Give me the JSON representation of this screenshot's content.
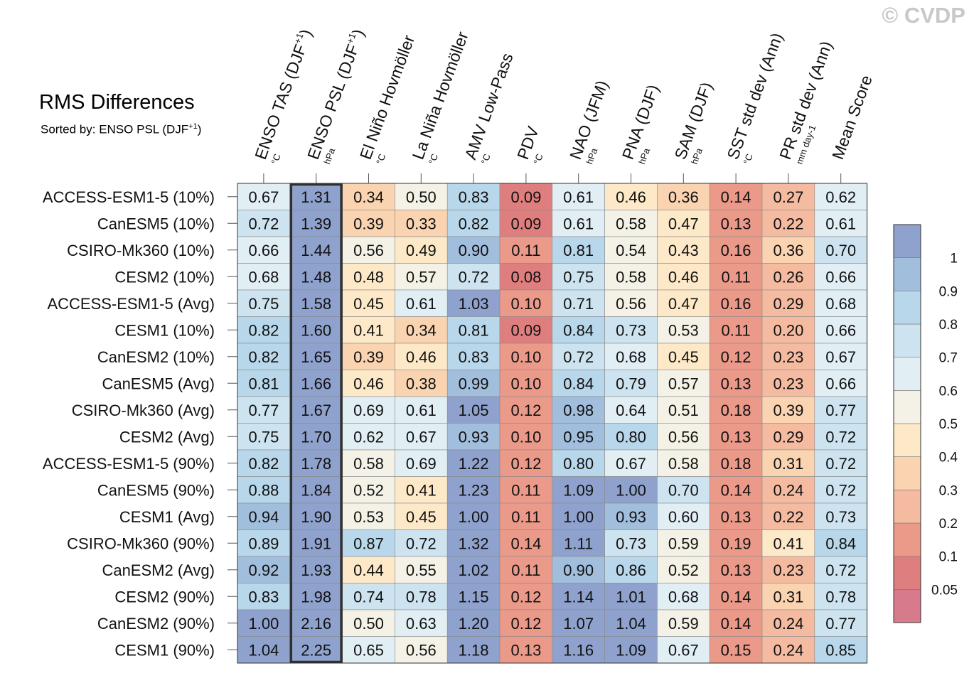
{
  "watermark": "© CVDP",
  "title": "RMS Differences",
  "subtitle_prefix": "Sorted by: ENSO PSL (DJF",
  "subtitle_sup": "+1",
  "subtitle_suffix": ")",
  "chart_data": {
    "type": "heatmap",
    "title": "RMS Differences",
    "sorted_by": "ENSO PSL (DJF+1)",
    "highlighted_column": "ENSO PSL (DJF+1)",
    "columns": [
      {
        "label": "ENSO TAS (DJF",
        "sup": "+1",
        "close": ")",
        "unit": "°C"
      },
      {
        "label": "ENSO PSL (DJF",
        "sup": "+1",
        "close": ")",
        "unit": "hPa"
      },
      {
        "label": "El Niño Hovmöller",
        "sup": "",
        "close": "",
        "unit": "°C"
      },
      {
        "label": "La Niña Hovmöller",
        "sup": "",
        "close": "",
        "unit": "°C"
      },
      {
        "label": "AMV Low-Pass",
        "sup": "",
        "close": "",
        "unit": "°C"
      },
      {
        "label": "PDV",
        "sup": "",
        "close": "",
        "unit": "°C"
      },
      {
        "label": "NAO (JFM)",
        "sup": "",
        "close": "",
        "unit": "hPa"
      },
      {
        "label": "PNA (DJF)",
        "sup": "",
        "close": "",
        "unit": "hPa"
      },
      {
        "label": "SAM (DJF)",
        "sup": "",
        "close": "",
        "unit": "hPa"
      },
      {
        "label": "SST std dev (Ann)",
        "sup": "",
        "close": "",
        "unit": "°C"
      },
      {
        "label": "PR std dev (Ann)",
        "sup": "",
        "close": "",
        "unit": "mm day-1"
      },
      {
        "label": "Mean Score",
        "sup": "",
        "close": "",
        "unit": ""
      }
    ],
    "rows": [
      "ACCESS-ESM1-5 (10%)",
      "CanESM5 (10%)",
      "CSIRO-Mk360 (10%)",
      "CESM2 (10%)",
      "ACCESS-ESM1-5 (Avg)",
      "CESM1 (10%)",
      "CanESM2 (10%)",
      "CanESM5 (Avg)",
      "CSIRO-Mk360 (Avg)",
      "CESM2 (Avg)",
      "ACCESS-ESM1-5 (90%)",
      "CanESM5 (90%)",
      "CESM1 (Avg)",
      "CSIRO-Mk360 (90%)",
      "CanESM2 (Avg)",
      "CESM2 (90%)",
      "CanESM2 (90%)",
      "CESM1 (90%)"
    ],
    "values": [
      [
        "0.67",
        "1.31",
        "0.34",
        "0.50",
        "0.83",
        "0.09",
        "0.61",
        "0.46",
        "0.36",
        "0.14",
        "0.27",
        "0.62"
      ],
      [
        "0.72",
        "1.39",
        "0.39",
        "0.33",
        "0.82",
        "0.09",
        "0.61",
        "0.58",
        "0.47",
        "0.13",
        "0.22",
        "0.61"
      ],
      [
        "0.66",
        "1.44",
        "0.56",
        "0.49",
        "0.90",
        "0.11",
        "0.81",
        "0.54",
        "0.43",
        "0.16",
        "0.36",
        "0.70"
      ],
      [
        "0.68",
        "1.48",
        "0.48",
        "0.57",
        "0.72",
        "0.08",
        "0.75",
        "0.58",
        "0.46",
        "0.11",
        "0.26",
        "0.66"
      ],
      [
        "0.75",
        "1.58",
        "0.45",
        "0.61",
        "1.03",
        "0.10",
        "0.71",
        "0.56",
        "0.47",
        "0.16",
        "0.29",
        "0.68"
      ],
      [
        "0.82",
        "1.60",
        "0.41",
        "0.34",
        "0.81",
        "0.09",
        "0.84",
        "0.73",
        "0.53",
        "0.11",
        "0.20",
        "0.66"
      ],
      [
        "0.82",
        "1.65",
        "0.39",
        "0.46",
        "0.83",
        "0.10",
        "0.72",
        "0.68",
        "0.45",
        "0.12",
        "0.23",
        "0.67"
      ],
      [
        "0.81",
        "1.66",
        "0.46",
        "0.38",
        "0.99",
        "0.10",
        "0.84",
        "0.79",
        "0.57",
        "0.13",
        "0.23",
        "0.66"
      ],
      [
        "0.77",
        "1.67",
        "0.69",
        "0.61",
        "1.05",
        "0.12",
        "0.98",
        "0.64",
        "0.51",
        "0.18",
        "0.39",
        "0.77"
      ],
      [
        "0.75",
        "1.70",
        "0.62",
        "0.67",
        "0.93",
        "0.10",
        "0.95",
        "0.80",
        "0.56",
        "0.13",
        "0.29",
        "0.72"
      ],
      [
        "0.82",
        "1.78",
        "0.58",
        "0.69",
        "1.22",
        "0.12",
        "0.80",
        "0.67",
        "0.58",
        "0.18",
        "0.31",
        "0.72"
      ],
      [
        "0.88",
        "1.84",
        "0.52",
        "0.41",
        "1.23",
        "0.11",
        "1.09",
        "1.00",
        "0.70",
        "0.14",
        "0.24",
        "0.72"
      ],
      [
        "0.94",
        "1.90",
        "0.53",
        "0.45",
        "1.00",
        "0.11",
        "1.00",
        "0.93",
        "0.60",
        "0.13",
        "0.22",
        "0.73"
      ],
      [
        "0.89",
        "1.91",
        "0.87",
        "0.72",
        "1.32",
        "0.14",
        "1.11",
        "0.73",
        "0.59",
        "0.19",
        "0.41",
        "0.84"
      ],
      [
        "0.92",
        "1.93",
        "0.44",
        "0.55",
        "1.02",
        "0.11",
        "0.90",
        "0.86",
        "0.52",
        "0.13",
        "0.23",
        "0.72"
      ],
      [
        "0.83",
        "1.98",
        "0.74",
        "0.78",
        "1.15",
        "0.12",
        "1.14",
        "1.01",
        "0.68",
        "0.14",
        "0.31",
        "0.78"
      ],
      [
        "1.00",
        "2.16",
        "0.50",
        "0.63",
        "1.20",
        "0.12",
        "1.07",
        "1.04",
        "0.59",
        "0.14",
        "0.24",
        "0.77"
      ],
      [
        "1.04",
        "2.25",
        "0.65",
        "0.56",
        "1.18",
        "0.13",
        "1.16",
        "1.09",
        "0.67",
        "0.15",
        "0.24",
        "0.85"
      ]
    ],
    "colorbar": {
      "levels": [
        "0.05",
        "0.1",
        "0.2",
        "0.3",
        "0.4",
        "0.5",
        "0.6",
        "0.7",
        "0.8",
        "0.9",
        "1"
      ],
      "colors": [
        "#d77b8c",
        "#df7e7e",
        "#eb9a8a",
        "#f5bba1",
        "#fad4b0",
        "#fde9c8",
        "#f4f2e6",
        "#e1eff5",
        "#cde4f0",
        "#b8d7ea",
        "#a2bedd",
        "#8fa2cd"
      ]
    }
  }
}
